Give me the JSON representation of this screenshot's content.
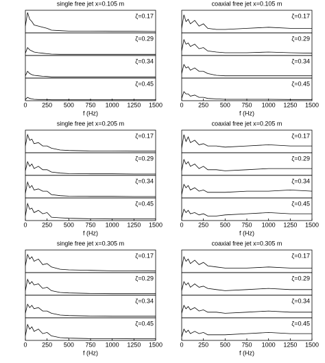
{
  "chart_data": [
    {
      "type": "line",
      "title": "single free jet x=0.105 m",
      "xlabel": "f (Hz)",
      "color": "#000000",
      "x": [
        0,
        25,
        50,
        75,
        100,
        150,
        200,
        250,
        300,
        400,
        500,
        750,
        1000,
        1250,
        1500
      ],
      "xlim": [
        0,
        1500
      ],
      "xticks": [
        0,
        250,
        500,
        750,
        1000,
        1250,
        1500
      ],
      "ylim": [
        0,
        1
      ],
      "series": [
        {
          "name": "ζ=0.17",
          "values": [
            0.3,
            0.9,
            0.6,
            0.5,
            0.35,
            0.3,
            0.25,
            0.2,
            0.12,
            0.1,
            0.08,
            0.08,
            0.07,
            0.07,
            0.06
          ]
        },
        {
          "name": "ζ=0.29",
          "values": [
            0.1,
            0.35,
            0.25,
            0.2,
            0.15,
            0.12,
            0.1,
            0.08,
            0.06,
            0.05,
            0.05,
            0.05,
            0.05,
            0.05,
            0.05
          ]
        },
        {
          "name": "ζ=0.34",
          "values": [
            0.1,
            0.3,
            0.2,
            0.15,
            0.12,
            0.1,
            0.08,
            0.07,
            0.05,
            0.05,
            0.05,
            0.05,
            0.05,
            0.05,
            0.05
          ]
        },
        {
          "name": "ζ=0.45",
          "values": [
            0.05,
            0.15,
            0.1,
            0.08,
            0.06,
            0.05,
            0.05,
            0.05,
            0.04,
            0.04,
            0.04,
            0.04,
            0.04,
            0.04,
            0.04
          ]
        }
      ]
    },
    {
      "type": "line",
      "title": "coaxial free jet x=0.105 m",
      "xlabel": "f (Hz)",
      "color": "#000000",
      "x": [
        0,
        25,
        50,
        75,
        100,
        150,
        200,
        250,
        300,
        400,
        500,
        750,
        1000,
        1250,
        1500
      ],
      "xlim": [
        0,
        1500
      ],
      "xticks": [
        0,
        250,
        500,
        750,
        1000,
        1250,
        1500
      ],
      "ylim": [
        0,
        1
      ],
      "series": [
        {
          "name": "ζ=0.17",
          "values": [
            0.2,
            0.8,
            0.5,
            0.6,
            0.4,
            0.55,
            0.3,
            0.4,
            0.2,
            0.15,
            0.15,
            0.2,
            0.25,
            0.2,
            0.2
          ]
        },
        {
          "name": "ζ=0.29",
          "values": [
            0.2,
            0.7,
            0.5,
            0.55,
            0.4,
            0.5,
            0.3,
            0.35,
            0.2,
            0.15,
            0.12,
            0.12,
            0.15,
            0.12,
            0.1
          ]
        },
        {
          "name": "ζ=0.34",
          "values": [
            0.2,
            0.6,
            0.45,
            0.5,
            0.35,
            0.45,
            0.3,
            0.3,
            0.2,
            0.12,
            0.1,
            0.1,
            0.1,
            0.1,
            0.1
          ]
        },
        {
          "name": "ζ=0.45",
          "values": [
            0.1,
            0.4,
            0.3,
            0.3,
            0.2,
            0.25,
            0.15,
            0.15,
            0.1,
            0.08,
            0.06,
            0.06,
            0.06,
            0.05,
            0.05
          ]
        }
      ]
    },
    {
      "type": "line",
      "title": "single free jet x=0.205 m",
      "xlabel": "f (Hz)",
      "color": "#000000",
      "x": [
        0,
        25,
        50,
        75,
        100,
        150,
        200,
        250,
        300,
        400,
        500,
        750,
        1000,
        1250,
        1500
      ],
      "xlim": [
        0,
        1500
      ],
      "xticks": [
        0,
        250,
        500,
        750,
        1000,
        1250,
        1500
      ],
      "ylim": [
        0,
        1
      ],
      "series": [
        {
          "name": "ζ=0.17",
          "values": [
            0.3,
            0.8,
            0.55,
            0.6,
            0.4,
            0.45,
            0.3,
            0.3,
            0.2,
            0.12,
            0.1,
            0.08,
            0.08,
            0.07,
            0.07
          ]
        },
        {
          "name": "ζ=0.29",
          "values": [
            0.2,
            0.6,
            0.4,
            0.5,
            0.3,
            0.4,
            0.25,
            0.25,
            0.15,
            0.1,
            0.08,
            0.07,
            0.07,
            0.06,
            0.06
          ]
        },
        {
          "name": "ζ=0.34",
          "values": [
            0.2,
            0.7,
            0.45,
            0.55,
            0.35,
            0.4,
            0.3,
            0.3,
            0.15,
            0.1,
            0.08,
            0.07,
            0.07,
            0.06,
            0.06
          ]
        },
        {
          "name": "ζ=0.45",
          "values": [
            0.2,
            0.75,
            0.5,
            0.55,
            0.35,
            0.45,
            0.3,
            0.35,
            0.15,
            0.12,
            0.1,
            0.08,
            0.07,
            0.07,
            0.07
          ]
        }
      ]
    },
    {
      "type": "line",
      "title": "coaxial free jet x=0.205 m",
      "xlabel": "f (Hz)",
      "color": "#000000",
      "x": [
        0,
        25,
        50,
        75,
        100,
        150,
        200,
        250,
        300,
        400,
        500,
        750,
        1000,
        1250,
        1500
      ],
      "xlim": [
        0,
        1500
      ],
      "xticks": [
        0,
        250,
        500,
        750,
        1000,
        1250,
        1500
      ],
      "ylim": [
        0,
        1
      ],
      "series": [
        {
          "name": "ζ=0.17",
          "values": [
            0.2,
            0.8,
            0.5,
            0.7,
            0.45,
            0.55,
            0.35,
            0.4,
            0.3,
            0.3,
            0.25,
            0.3,
            0.35,
            0.3,
            0.3
          ]
        },
        {
          "name": "ζ=0.29",
          "values": [
            0.2,
            0.7,
            0.5,
            0.6,
            0.4,
            0.5,
            0.3,
            0.4,
            0.25,
            0.25,
            0.2,
            0.25,
            0.3,
            0.3,
            0.3
          ]
        },
        {
          "name": "ζ=0.34",
          "values": [
            0.15,
            0.6,
            0.45,
            0.55,
            0.35,
            0.45,
            0.3,
            0.35,
            0.25,
            0.25,
            0.25,
            0.3,
            0.3,
            0.35,
            0.3
          ]
        },
        {
          "name": "ζ=0.45",
          "values": [
            0.1,
            0.5,
            0.35,
            0.45,
            0.3,
            0.35,
            0.25,
            0.3,
            0.2,
            0.2,
            0.25,
            0.3,
            0.35,
            0.3,
            0.3
          ]
        }
      ]
    },
    {
      "type": "line",
      "title": "single free jet x=0.305 m",
      "xlabel": "f (Hz)",
      "color": "#000000",
      "x": [
        0,
        25,
        50,
        75,
        100,
        150,
        200,
        250,
        300,
        400,
        500,
        750,
        1000,
        1250,
        1500
      ],
      "xlim": [
        0,
        1500
      ],
      "xticks": [
        0,
        250,
        500,
        750,
        1000,
        1250,
        1500
      ],
      "ylim": [
        0,
        1
      ],
      "series": [
        {
          "name": "ζ=0.17",
          "values": [
            0.3,
            0.8,
            0.6,
            0.7,
            0.5,
            0.6,
            0.35,
            0.4,
            0.25,
            0.15,
            0.12,
            0.1,
            0.08,
            0.08,
            0.07
          ]
        },
        {
          "name": "ζ=0.29",
          "values": [
            0.2,
            0.7,
            0.5,
            0.6,
            0.45,
            0.5,
            0.3,
            0.35,
            0.2,
            0.12,
            0.1,
            0.08,
            0.07,
            0.07,
            0.07
          ]
        },
        {
          "name": "ζ=0.34",
          "values": [
            0.2,
            0.6,
            0.45,
            0.55,
            0.4,
            0.45,
            0.3,
            0.3,
            0.2,
            0.12,
            0.1,
            0.08,
            0.07,
            0.07,
            0.07
          ]
        },
        {
          "name": "ζ=0.45",
          "values": [
            0.2,
            0.7,
            0.5,
            0.6,
            0.4,
            0.5,
            0.3,
            0.35,
            0.2,
            0.12,
            0.1,
            0.08,
            0.08,
            0.07,
            0.07
          ]
        }
      ]
    },
    {
      "type": "line",
      "title": "coaxial free jet x=0.305 m",
      "xlabel": "f (Hz)",
      "color": "#000000",
      "x": [
        0,
        25,
        50,
        75,
        100,
        150,
        200,
        250,
        300,
        400,
        500,
        750,
        1000,
        1250,
        1500
      ],
      "xlim": [
        0,
        1500
      ],
      "xticks": [
        0,
        250,
        500,
        750,
        1000,
        1250,
        1500
      ],
      "ylim": [
        0,
        1
      ],
      "series": [
        {
          "name": "ζ=0.17",
          "values": [
            0.2,
            0.7,
            0.5,
            0.6,
            0.4,
            0.55,
            0.35,
            0.45,
            0.3,
            0.25,
            0.2,
            0.2,
            0.25,
            0.2,
            0.2
          ]
        },
        {
          "name": "ζ=0.29",
          "values": [
            0.2,
            0.6,
            0.45,
            0.55,
            0.35,
            0.5,
            0.35,
            0.4,
            0.3,
            0.25,
            0.2,
            0.25,
            0.3,
            0.25,
            0.25
          ]
        },
        {
          "name": "ζ=0.34",
          "values": [
            0.2,
            0.55,
            0.4,
            0.5,
            0.35,
            0.45,
            0.3,
            0.35,
            0.25,
            0.25,
            0.2,
            0.25,
            0.3,
            0.25,
            0.25
          ]
        },
        {
          "name": "ζ=0.45",
          "values": [
            0.15,
            0.5,
            0.35,
            0.45,
            0.3,
            0.4,
            0.3,
            0.35,
            0.25,
            0.25,
            0.25,
            0.3,
            0.35,
            0.3,
            0.3
          ]
        }
      ]
    }
  ]
}
